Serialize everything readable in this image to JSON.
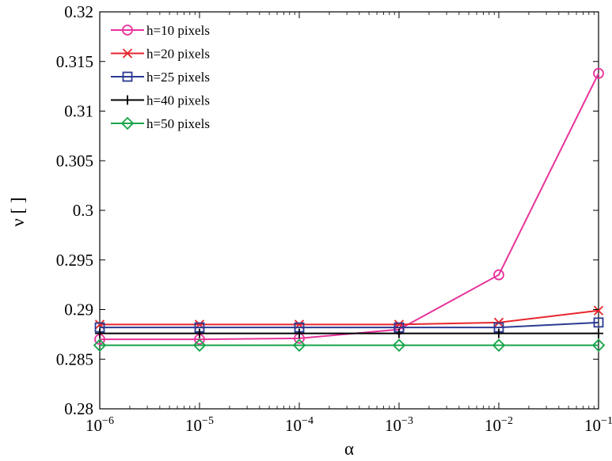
{
  "chart_data": {
    "type": "line",
    "xlabel": "α",
    "ylabel": "ν [ ]",
    "x_scale": "log",
    "xlim": [
      1e-06,
      0.1
    ],
    "ylim": [
      0.28,
      0.32
    ],
    "x": [
      1e-06,
      1e-05,
      0.0001,
      0.001,
      0.01,
      0.1
    ],
    "x_ticks": [
      {
        "value": 1e-06,
        "base": "10",
        "exp": "−6"
      },
      {
        "value": 1e-05,
        "base": "10",
        "exp": "−5"
      },
      {
        "value": 0.0001,
        "base": "10",
        "exp": "−4"
      },
      {
        "value": 0.001,
        "base": "10",
        "exp": "−3"
      },
      {
        "value": 0.01,
        "base": "10",
        "exp": "−2"
      },
      {
        "value": 0.1,
        "base": "10",
        "exp": "−1"
      }
    ],
    "y_ticks": [
      {
        "value": 0.28,
        "label": "0.28"
      },
      {
        "value": 0.285,
        "label": "0.285"
      },
      {
        "value": 0.29,
        "label": "0.29"
      },
      {
        "value": 0.295,
        "label": "0.295"
      },
      {
        "value": 0.3,
        "label": "0.3"
      },
      {
        "value": 0.305,
        "label": "0.305"
      },
      {
        "value": 0.31,
        "label": "0.31"
      },
      {
        "value": 0.315,
        "label": "0.315"
      },
      {
        "value": 0.32,
        "label": "0.32"
      }
    ],
    "grid": false,
    "legend_position": "top-left",
    "series": [
      {
        "name": "h=10 pixels",
        "color": "#e8329b",
        "marker": "circle",
        "values": [
          0.287,
          0.287,
          0.2871,
          0.288,
          0.2935,
          0.3138
        ]
      },
      {
        "name": "h=20 pixels",
        "color": "#e8262d",
        "marker": "x",
        "values": [
          0.2885,
          0.2885,
          0.2885,
          0.2885,
          0.2887,
          0.2899
        ]
      },
      {
        "name": "h=25 pixels",
        "color": "#2b3a92",
        "marker": "square",
        "values": [
          0.2882,
          0.2882,
          0.2882,
          0.2882,
          0.2882,
          0.2887
        ]
      },
      {
        "name": "h=40 pixels",
        "color": "#000000",
        "marker": "plus",
        "values": [
          0.2876,
          0.2876,
          0.2876,
          0.2876,
          0.2876,
          0.2876
        ]
      },
      {
        "name": "h=50 pixels",
        "color": "#19a54a",
        "marker": "diamond",
        "values": [
          0.2864,
          0.2864,
          0.2864,
          0.2864,
          0.2864,
          0.2864
        ]
      }
    ]
  }
}
